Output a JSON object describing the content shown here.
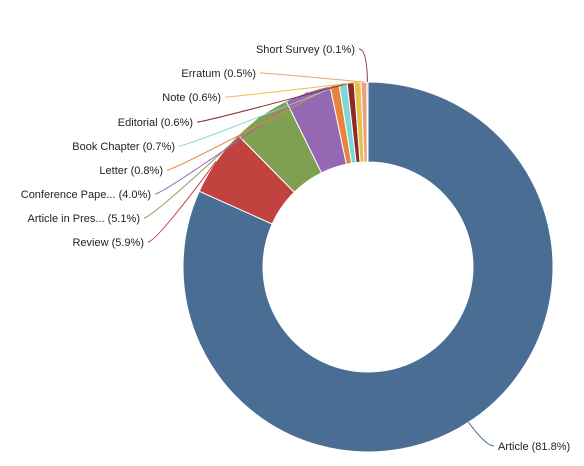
{
  "chart_data": {
    "type": "pie",
    "donut": true,
    "title": "",
    "legend": "none",
    "slices": [
      {
        "label": "Article (81.8%)",
        "value": 81.8,
        "color": "#4a6d94"
      },
      {
        "label": "Review (5.9%)",
        "value": 5.9,
        "color": "#c2423f"
      },
      {
        "label": "Article in Pres... (5.1%)",
        "value": 5.1,
        "color": "#7fa052"
      },
      {
        "label": "Conference Pape... (4.0%)",
        "value": 4.0,
        "color": "#9468b2"
      },
      {
        "label": "Letter (0.8%)",
        "value": 0.8,
        "color": "#e8843a"
      },
      {
        "label": "Book Chapter (0.7%)",
        "value": 0.7,
        "color": "#7fd6d6"
      },
      {
        "label": "Editorial (0.6%)",
        "value": 0.6,
        "color": "#8c2a2a"
      },
      {
        "label": "Note (0.6%)",
        "value": 0.6,
        "color": "#e8c04a"
      },
      {
        "label": "Erratum (0.5%)",
        "value": 0.5,
        "color": "#e8a27a"
      },
      {
        "label": "Short Survey (0.1%)",
        "value": 0.1,
        "color": "#8e3a55"
      }
    ]
  }
}
